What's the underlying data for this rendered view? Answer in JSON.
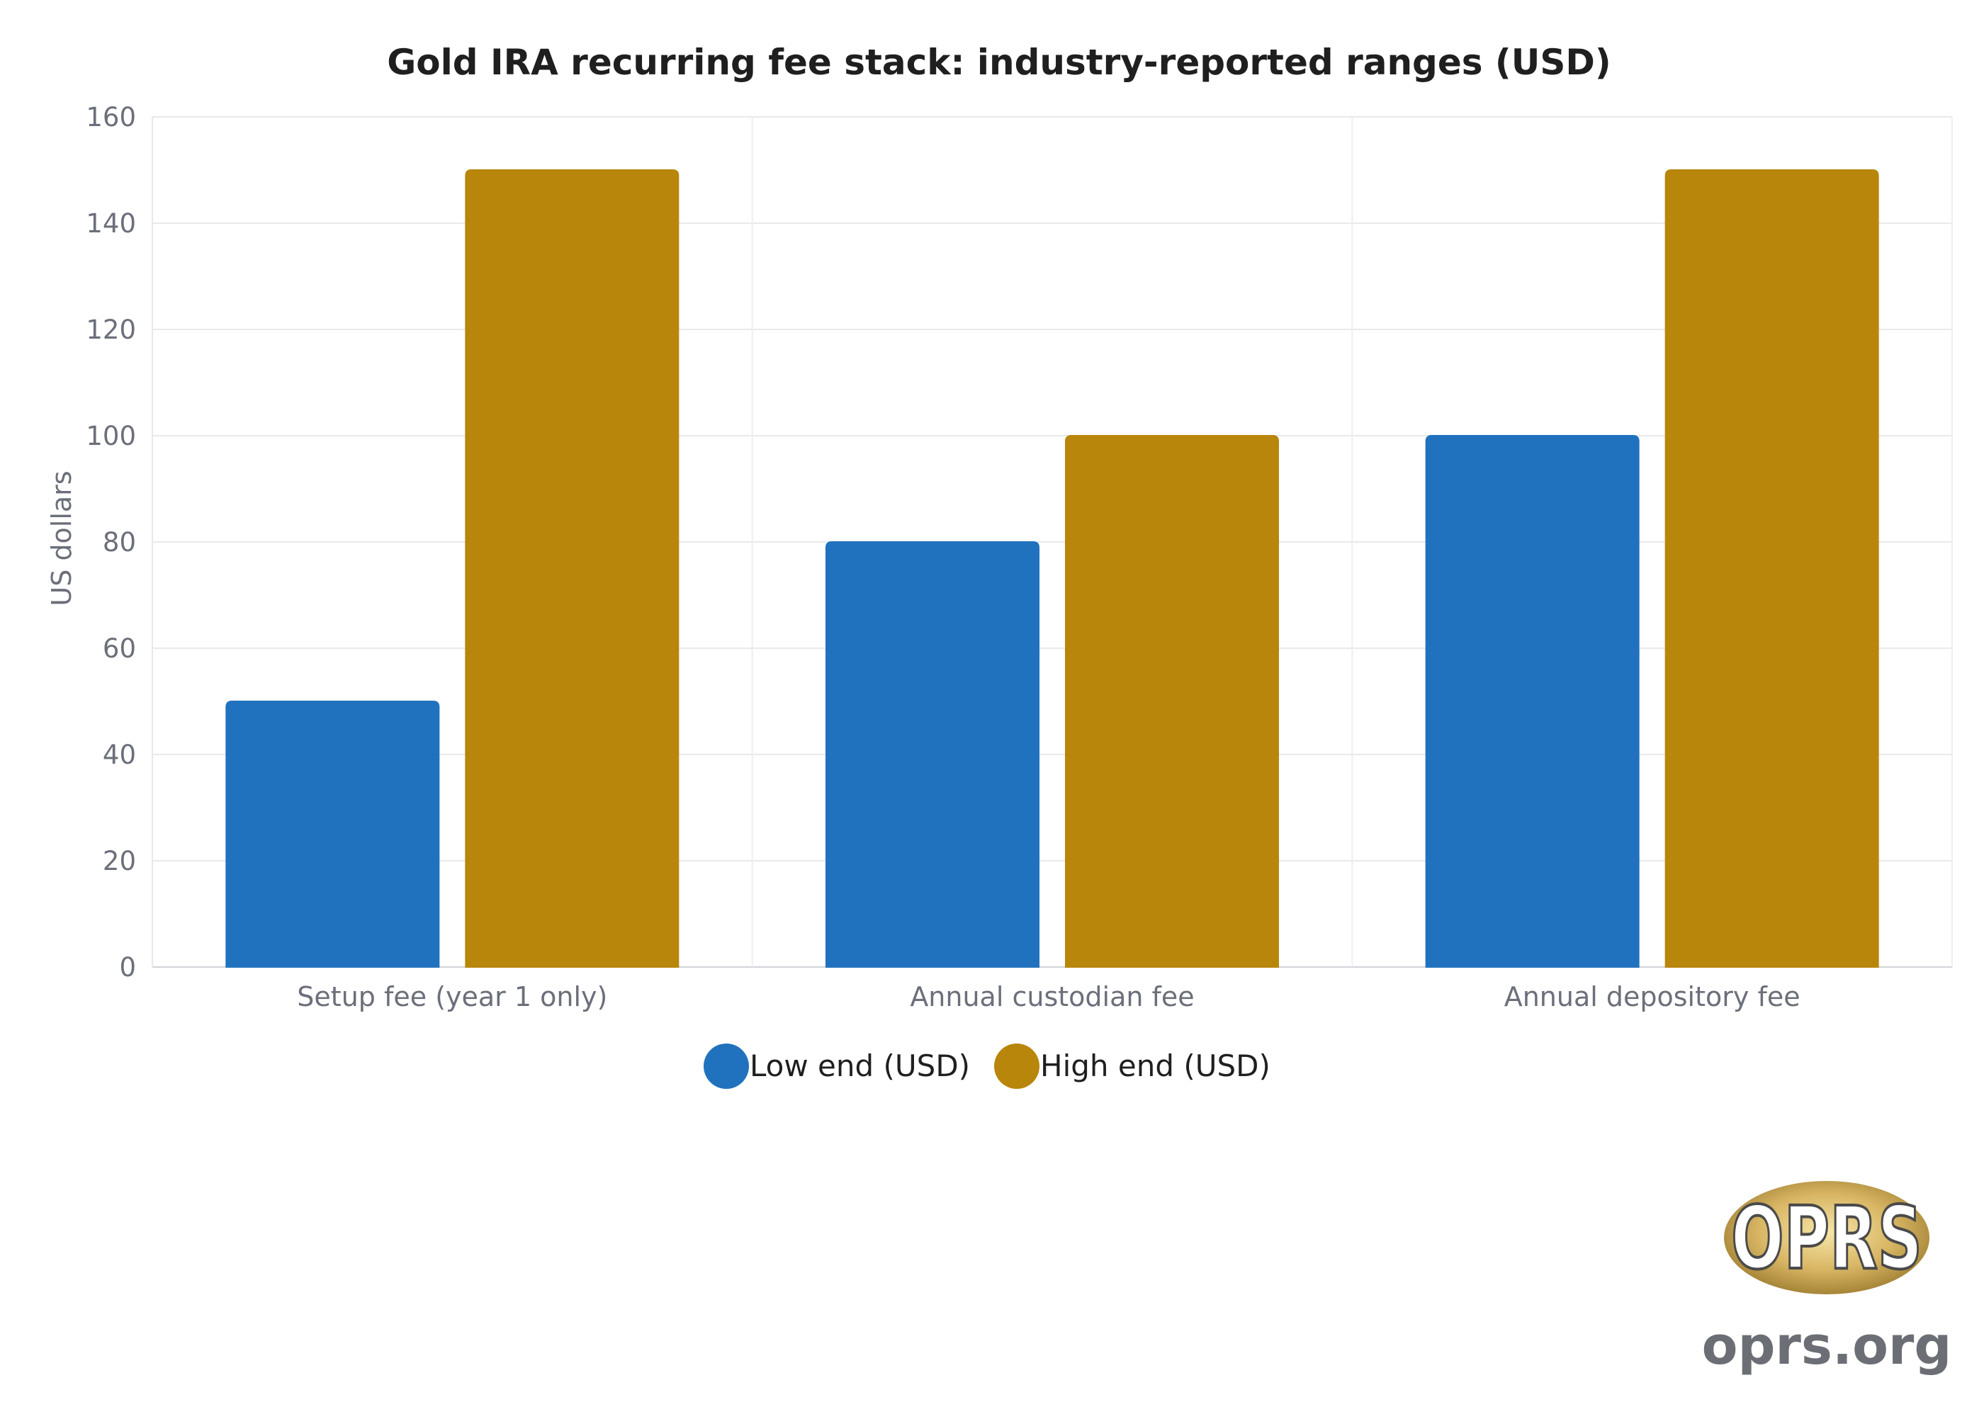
{
  "chart_data": {
    "type": "bar",
    "title": "Gold IRA recurring fee stack: industry-reported ranges (USD)",
    "xlabel": "",
    "ylabel": "US dollars",
    "ylim": [
      0,
      160
    ],
    "yticks": [
      0,
      20,
      40,
      60,
      80,
      100,
      120,
      140,
      160
    ],
    "categories": [
      "Setup fee (year 1 only)",
      "Annual custodian fee",
      "Annual depository fee"
    ],
    "series": [
      {
        "name": "Low end (USD)",
        "values": [
          50,
          80,
          100
        ],
        "color": "#2172be"
      },
      {
        "name": "High end (USD)",
        "values": [
          150,
          100,
          150
        ],
        "color": "#b8860b"
      }
    ],
    "grid": true,
    "legend_position": "bottom-center"
  },
  "watermark": {
    "logo_text": "OPRS",
    "url": "oprs.org"
  }
}
